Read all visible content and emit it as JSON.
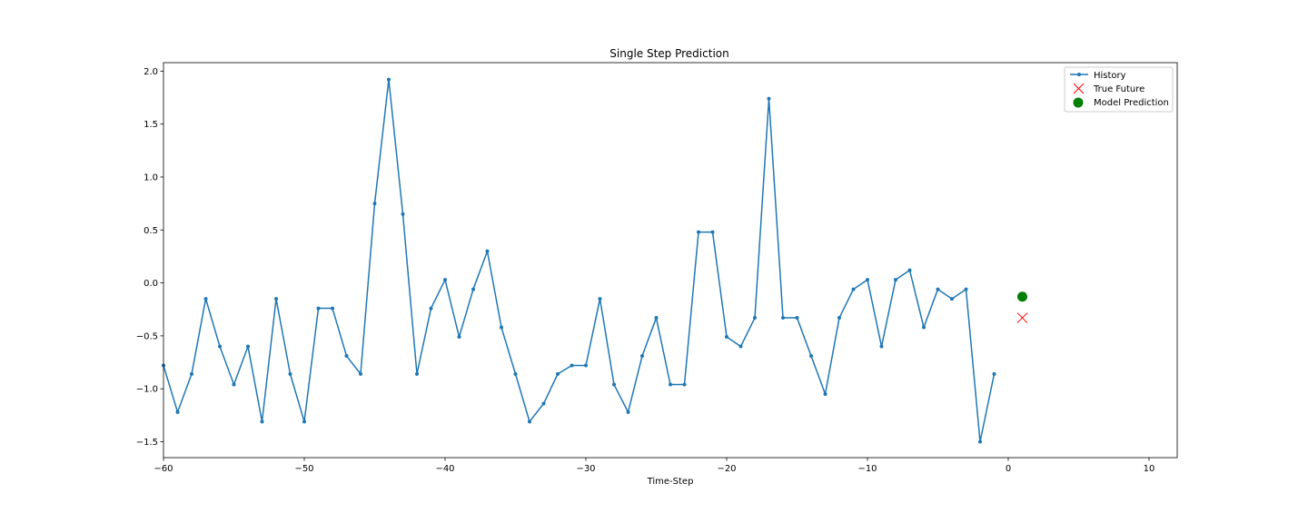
{
  "chart_data": {
    "type": "line",
    "title": "Single Step Prediction",
    "xlabel": "Time-Step",
    "ylabel": "",
    "xlim": [
      -60,
      12
    ],
    "ylim": [
      -1.65,
      2.08
    ],
    "xticks": [
      -60,
      -50,
      -40,
      -30,
      -20,
      -10,
      0,
      10
    ],
    "xtick_labels": [
      "−60",
      "−50",
      "−40",
      "−30",
      "−20",
      "−10",
      "0",
      "10"
    ],
    "yticks": [
      2.0,
      1.5,
      1.0,
      0.5,
      0.0,
      -0.5,
      -1.0,
      -1.5
    ],
    "ytick_labels": [
      "2.0",
      "1.5",
      "1.0",
      "0.5",
      "0.0",
      "−0.5",
      "−1.0",
      "−1.5"
    ],
    "legend_position": "top-right",
    "grid": false,
    "series": [
      {
        "name": "History",
        "kind": "line-with-markers",
        "color": "#1f77b4",
        "x": [
          -60,
          -59,
          -58,
          -57,
          -56,
          -55,
          -54,
          -53,
          -52,
          -51,
          -50,
          -49,
          -48,
          -47,
          -46,
          -45,
          -44,
          -43,
          -42,
          -41,
          -40,
          -39,
          -38,
          -37,
          -36,
          -35,
          -34,
          -33,
          -32,
          -31,
          -30,
          -29,
          -28,
          -27,
          -26,
          -25,
          -24,
          -23,
          -22,
          -21,
          -20,
          -19,
          -18,
          -17,
          -16,
          -15,
          -14,
          -13,
          -12,
          -11,
          -10,
          -9,
          -8,
          -7,
          -6,
          -5,
          -4,
          -3,
          -2,
          -1
        ],
        "values": [
          -0.78,
          -1.22,
          -0.86,
          -0.15,
          -0.6,
          -0.96,
          -0.6,
          -1.31,
          -0.15,
          -0.86,
          -1.31,
          -0.24,
          -0.24,
          -0.69,
          -0.86,
          0.75,
          1.92,
          0.65,
          -0.86,
          -0.24,
          0.03,
          -0.51,
          -0.06,
          0.3,
          -0.42,
          -0.86,
          -1.31,
          -1.14,
          -0.86,
          -0.78,
          -0.78,
          -0.15,
          -0.96,
          -1.22,
          -0.69,
          -0.33,
          -0.96,
          -0.96,
          0.48,
          0.48,
          -0.51,
          -0.6,
          -0.33,
          1.74,
          -0.33,
          -0.33,
          -0.69,
          -1.05,
          -0.33,
          -0.06,
          0.03,
          -0.6,
          0.03,
          0.12,
          -0.42,
          -0.06,
          -0.15,
          -0.06,
          -1.5,
          -0.86
        ]
      },
      {
        "name": "True Future",
        "kind": "x-marker",
        "color": "#ff0000",
        "x": [
          1
        ],
        "values": [
          -0.33
        ]
      },
      {
        "name": "Model Prediction",
        "kind": "circle-marker",
        "color": "#008000",
        "x": [
          1
        ],
        "values": [
          -0.13
        ]
      }
    ]
  }
}
